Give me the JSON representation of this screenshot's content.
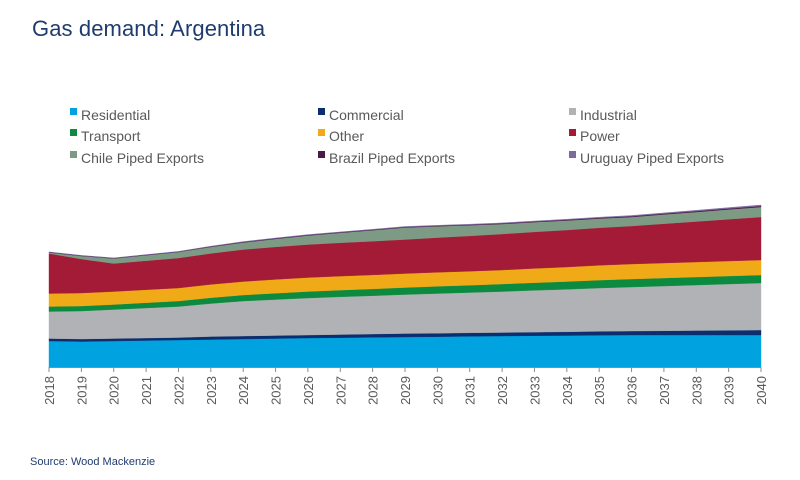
{
  "title": "Gas demand: Argentina",
  "source": "Source: Wood Mackenzie",
  "chart_data": {
    "type": "area",
    "stacked": true,
    "title": "Gas demand: Argentina",
    "xlabel": "",
    "ylabel": "",
    "units": "relative (no y-axis shown)",
    "ylim": [
      0,
      165
    ],
    "grid": false,
    "legend_position": "top",
    "x": [
      2018,
      2019,
      2020,
      2021,
      2022,
      2023,
      2024,
      2025,
      2026,
      2027,
      2028,
      2029,
      2030,
      2031,
      2032,
      2033,
      2034,
      2035,
      2036,
      2037,
      2038,
      2039,
      2040
    ],
    "x_tick_labels": [
      "2018",
      "2019",
      "2020",
      "2021",
      "2022",
      "2023",
      "2024",
      "2025",
      "2026",
      "2027",
      "2028",
      "2029",
      "2030",
      "2031",
      "2032",
      "2033",
      "2034",
      "2035",
      "2036",
      "2037",
      "2038",
      "2039",
      "2040"
    ],
    "series": [
      {
        "name": "Residential",
        "color": "#00a3e0",
        "values": [
          26,
          25.5,
          26,
          26.5,
          27,
          27.5,
          28,
          28.5,
          29,
          29.3,
          29.7,
          30,
          30.3,
          30.7,
          31,
          31.3,
          31.5,
          31.8,
          32,
          32,
          32,
          32,
          32
        ]
      },
      {
        "name": "Commercial",
        "color": "#0b2e6f",
        "values": [
          2.5,
          2.5,
          2.5,
          2.5,
          2.5,
          3,
          3,
          3,
          3,
          3.2,
          3.3,
          3.5,
          3.5,
          3.5,
          3.5,
          3.6,
          3.7,
          3.9,
          4,
          4.2,
          4.5,
          4.7,
          5
        ]
      },
      {
        "name": "Industrial",
        "color": "#b1b2b5",
        "values": [
          27,
          28,
          29,
          30,
          31,
          33,
          35,
          36,
          37,
          37.7,
          38.3,
          39,
          39.7,
          40.3,
          41,
          41.8,
          42.5,
          43.3,
          44,
          44.8,
          45.5,
          46.3,
          47
        ]
      },
      {
        "name": "Transport",
        "color": "#0c8a3f",
        "values": [
          5,
          5,
          5,
          5.3,
          5.5,
          5.8,
          6,
          6.3,
          6.5,
          6.7,
          6.8,
          7,
          7.2,
          7.3,
          7.5,
          7.6,
          7.8,
          7.9,
          8,
          8,
          8,
          8,
          8
        ]
      },
      {
        "name": "Other",
        "color": "#f0aa18",
        "values": [
          13,
          13,
          13,
          13,
          13,
          13.3,
          13.5,
          13.8,
          14,
          14,
          14,
          14,
          14,
          14,
          14,
          14.3,
          14.5,
          14.8,
          15,
          15,
          15,
          15,
          15
        ]
      },
      {
        "name": "Power",
        "color": "#a31b36",
        "values": [
          40,
          34,
          28,
          29,
          30,
          31,
          32,
          32.5,
          33,
          33.3,
          33.7,
          34,
          34.7,
          35.3,
          36,
          36.5,
          37,
          37.5,
          38,
          39.3,
          40.5,
          41.8,
          43
        ]
      },
      {
        "name": "Chile Piped Exports",
        "color": "#7d9b84",
        "values": [
          1,
          3,
          5,
          5.5,
          6,
          6.5,
          7,
          8,
          9,
          10,
          11,
          12,
          11.3,
          10.7,
          10,
          9.8,
          9.5,
          9.3,
          9,
          9.3,
          9.5,
          9.8,
          10
        ]
      },
      {
        "name": "Brazil Piped Exports",
        "color": "#4b1848",
        "values": [
          0.3,
          0.3,
          0.3,
          0.3,
          0.3,
          0.4,
          0.5,
          0.5,
          0.5,
          0.5,
          0.5,
          0.5,
          0.5,
          0.5,
          0.6,
          0.6,
          0.7,
          0.7,
          0.8,
          0.8,
          0.9,
          0.9,
          1
        ]
      },
      {
        "name": "Uruguay Piped Exports",
        "color": "#7c6b9e",
        "values": [
          0.3,
          0.3,
          0.3,
          0.3,
          0.3,
          0.3,
          0.4,
          0.4,
          0.4,
          0.4,
          0.4,
          0.5,
          0.5,
          0.5,
          0.5,
          0.5,
          0.6,
          0.6,
          0.7,
          0.7,
          0.8,
          0.9,
          1
        ]
      }
    ]
  }
}
